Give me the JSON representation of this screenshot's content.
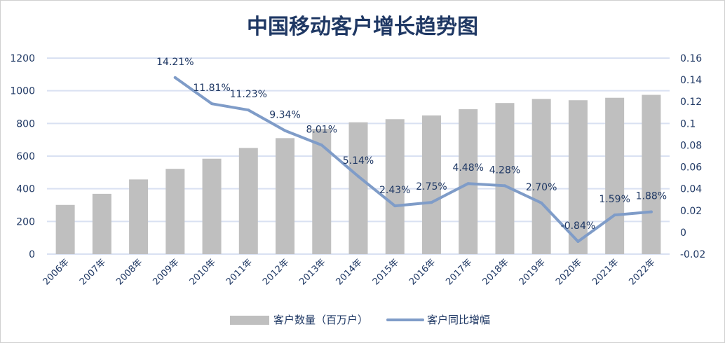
{
  "chart_data": {
    "type": "bar+line",
    "title": "中国移动客户增长趋势图",
    "categories": [
      "2006年",
      "2007年",
      "2008年",
      "2009年",
      "2010年",
      "2011年",
      "2012年",
      "2013年",
      "2014年",
      "2015年",
      "2016年",
      "2017年",
      "2018年",
      "2019年",
      "2020年",
      "2021年",
      "2022年"
    ],
    "series": [
      {
        "name": "客户数量（百万户）",
        "type": "bar",
        "axis": "left",
        "color": "#bfbfbf",
        "values": [
          301,
          369,
          457,
          522,
          584,
          650,
          710,
          767,
          807,
          826,
          849,
          887,
          925,
          950,
          942,
          957,
          975
        ]
      },
      {
        "name": "客户同比增幅",
        "type": "line",
        "axis": "right",
        "color": "#7f9cc8",
        "values": [
          null,
          null,
          null,
          0.1421,
          0.1181,
          0.1123,
          0.0934,
          0.0801,
          0.0514,
          0.0243,
          0.0275,
          0.0448,
          0.0428,
          0.027,
          -0.0084,
          0.0159,
          0.0188
        ],
        "labels": [
          null,
          null,
          null,
          "14.21%",
          "11.81%",
          "11.23%",
          "9.34%",
          "8.01%",
          "5.14%",
          "2.43%",
          "2.75%",
          "4.48%",
          "4.28%",
          "2.70%",
          "-0.84%",
          "1.59%",
          "1.88%"
        ]
      }
    ],
    "y_left": {
      "range": [
        0,
        1200
      ],
      "ticks": [
        "0",
        "200",
        "400",
        "600",
        "800",
        "1000",
        "1200"
      ]
    },
    "y_right": {
      "range": [
        -0.02,
        0.16
      ],
      "ticks": [
        "-0.02",
        "0",
        "0.02",
        "0.04",
        "0.06",
        "0.08",
        "0.1",
        "0.12",
        "0.14",
        "0.16"
      ]
    },
    "grid": true,
    "legend": "bottom",
    "colors": {
      "title": "#1f3864",
      "text": "#1f3864",
      "grid": "#d9e1f2"
    }
  }
}
